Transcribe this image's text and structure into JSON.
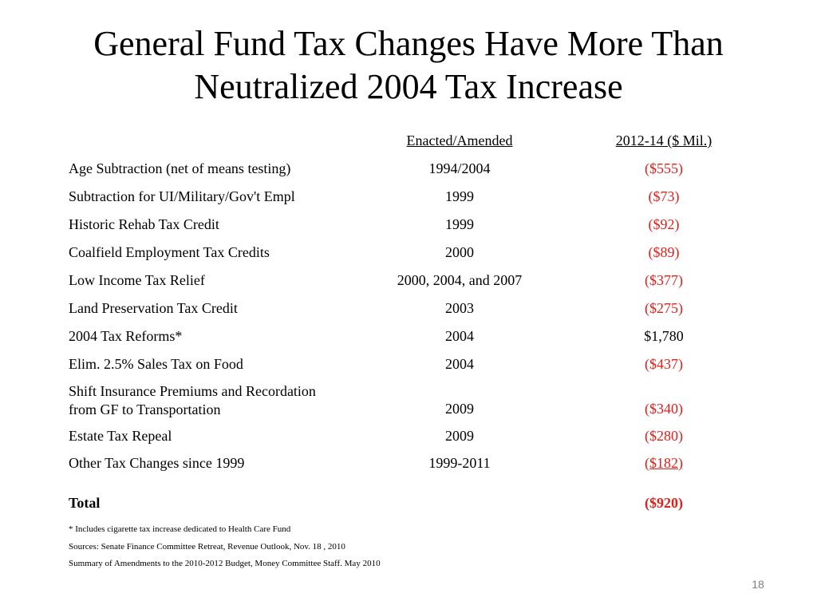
{
  "title_lines": [
    "General Fund Tax Changes Have More Than",
    "Neutralized 2004 Tax Increase"
  ],
  "columns": {
    "enacted": "Enacted/Amended",
    "amount": "2012-14 ($ Mil.)"
  },
  "rows": [
    {
      "label": "Age Subtraction (net of means testing)",
      "enacted": "1994/2004",
      "amount": "($555)"
    },
    {
      "label": "Subtraction for UI/Military/Gov't Empl",
      "enacted": "1999",
      "amount": "($73)"
    },
    {
      "label": "Historic Rehab Tax Credit",
      "enacted": "1999",
      "amount": "($92)"
    },
    {
      "label": "Coalfield Employment Tax Credits",
      "enacted": "2000",
      "amount": "($89)"
    },
    {
      "label": "Low Income Tax Relief",
      "enacted": "2000, 2004, and 2007",
      "amount": "($377)"
    },
    {
      "label": "Land Preservation Tax Credit",
      "enacted": "2003",
      "amount": "($275)"
    },
    {
      "label": "2004 Tax Reforms*",
      "enacted": "2004",
      "amount": "$1,780"
    },
    {
      "label": "Elim. 2.5% Sales Tax on Food",
      "enacted": "2004",
      "amount": "($437)"
    },
    {
      "label_line1": "Shift Insurance Premiums and Recordation",
      "label_line2": "from GF to Transportation",
      "enacted": "2009",
      "amount": "($340)"
    },
    {
      "label": "Estate Tax Repeal",
      "enacted": "2009",
      "amount": "($280)"
    },
    {
      "label": "Other Tax Changes since 1999",
      "enacted": "1999-2011",
      "amount": "($182)"
    }
  ],
  "total": {
    "label": "Total",
    "amount": "($920)"
  },
  "notes": [
    "* Includes cigarette tax increase dedicated to Health Care Fund",
    "Sources: Senate Finance Committee Retreat, Revenue Outlook, Nov. 18 , 2010",
    "Summary of Amendments to the 2010-2012 Budget, Money Committee Staff. May 2010"
  ],
  "page_number": "18",
  "colors": {
    "negative": "#e0201b",
    "page_number": "#7f7f7f"
  }
}
